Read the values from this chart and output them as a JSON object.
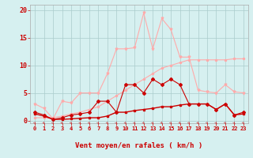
{
  "x": [
    0,
    1,
    2,
    3,
    4,
    5,
    6,
    7,
    8,
    9,
    10,
    11,
    12,
    13,
    14,
    15,
    16,
    17,
    18,
    19,
    20,
    21,
    22,
    23
  ],
  "series1": [
    3.0,
    2.2,
    0.3,
    3.5,
    3.2,
    5.0,
    5.0,
    5.0,
    8.5,
    13.0,
    13.0,
    13.2,
    19.5,
    13.0,
    18.5,
    16.5,
    11.5,
    11.5,
    5.5,
    5.2,
    5.0,
    6.5,
    5.2,
    5.0
  ],
  "series2": [
    0.5,
    0.5,
    0.5,
    0.8,
    1.2,
    1.5,
    2.0,
    2.5,
    3.5,
    4.5,
    5.5,
    6.5,
    7.5,
    8.5,
    9.5,
    10.0,
    10.5,
    11.0,
    11.0,
    11.0,
    11.0,
    11.0,
    11.2,
    11.2
  ],
  "series3": [
    1.5,
    1.0,
    0.2,
    0.5,
    1.0,
    1.2,
    1.5,
    3.5,
    3.5,
    1.5,
    6.5,
    6.5,
    5.0,
    7.5,
    6.5,
    7.5,
    6.5,
    3.0,
    3.0,
    3.0,
    2.0,
    3.0,
    1.0,
    1.5
  ],
  "series4": [
    1.2,
    0.8,
    0.2,
    0.2,
    0.3,
    0.4,
    0.5,
    0.5,
    0.8,
    1.5,
    1.5,
    1.8,
    2.0,
    2.2,
    2.5,
    2.5,
    2.8,
    3.0,
    3.0,
    3.0,
    2.0,
    3.0,
    1.0,
    1.2
  ],
  "color_light": "#ffaaaa",
  "color_dark": "#cc0000",
  "bg_color": "#d6f0f0",
  "grid_color": "#aacccc",
  "xlabel": "Vent moyen/en rafales ( km/h )",
  "ylim": [
    -0.5,
    21
  ],
  "xlim": [
    -0.5,
    23.5
  ],
  "yticks": [
    0,
    5,
    10,
    15,
    20
  ],
  "xticks": [
    0,
    1,
    2,
    3,
    4,
    5,
    6,
    7,
    8,
    9,
    10,
    11,
    12,
    13,
    14,
    15,
    16,
    17,
    18,
    19,
    20,
    21,
    22,
    23
  ]
}
